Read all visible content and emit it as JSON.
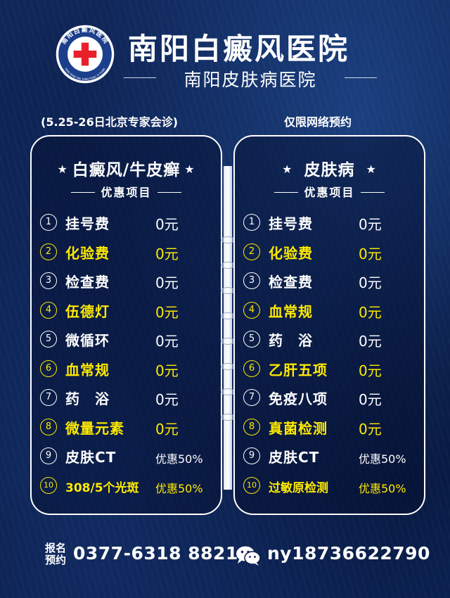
{
  "header": {
    "logo_ring_text": "南阳白癜风医院",
    "logo_pinyin": "NAN YANG BAI DIAN FENG YI YUAN",
    "title": "南阳白癜风医院",
    "subtitle": "南阳皮肤病医院",
    "note_left": "(5.25-26日北京专家会诊)",
    "note_right": "仅限网络预约"
  },
  "left_panel": {
    "title": "白癜风/牛皮癣",
    "subtitle": "优惠项目",
    "items": [
      {
        "num": "1",
        "name": "挂号费",
        "price": "0元",
        "color": "white"
      },
      {
        "num": "2",
        "name": "化验费",
        "price": "0元",
        "color": "yellow"
      },
      {
        "num": "3",
        "name": "检查费",
        "price": "0元",
        "color": "white"
      },
      {
        "num": "4",
        "name": "伍德灯",
        "price": "0元",
        "color": "yellow"
      },
      {
        "num": "5",
        "name": "微循环",
        "price": "0元",
        "color": "white"
      },
      {
        "num": "6",
        "name": "血常规",
        "price": "0元",
        "color": "yellow"
      },
      {
        "num": "7",
        "name": "药　浴",
        "price": "0元",
        "color": "white"
      },
      {
        "num": "8",
        "name": "微量元素",
        "price": "0元",
        "color": "yellow"
      },
      {
        "num": "9",
        "name": "皮肤CT",
        "price": "优惠50%",
        "color": "white"
      },
      {
        "num": "10",
        "name": "308/5个光斑",
        "price": "优惠50%",
        "color": "yellow"
      }
    ]
  },
  "right_panel": {
    "title": "皮肤病",
    "subtitle": "优惠项目",
    "items": [
      {
        "num": "1",
        "name": "挂号费",
        "price": "0元",
        "color": "white"
      },
      {
        "num": "2",
        "name": "化验费",
        "price": "0元",
        "color": "yellow"
      },
      {
        "num": "3",
        "name": "检查费",
        "price": "0元",
        "color": "white"
      },
      {
        "num": "4",
        "name": "血常规",
        "price": "0元",
        "color": "yellow"
      },
      {
        "num": "5",
        "name": "药　浴",
        "price": "0元",
        "color": "white"
      },
      {
        "num": "6",
        "name": "乙肝五项",
        "price": "0元",
        "color": "yellow"
      },
      {
        "num": "7",
        "name": "免疫八项",
        "price": "0元",
        "color": "white"
      },
      {
        "num": "8",
        "name": "真菌检测",
        "price": "0元",
        "color": "yellow"
      },
      {
        "num": "9",
        "name": "皮肤CT",
        "price": "优惠50%",
        "color": "white"
      },
      {
        "num": "10",
        "name": "过敏原检测",
        "price": "优惠50%",
        "color": "yellow"
      }
    ]
  },
  "footer": {
    "label_top": "报名",
    "label_bottom": "预约",
    "phone": "0377-6318 8821",
    "wechat_id": "ny18736622790"
  },
  "colors": {
    "highlight": "#ffea00",
    "text": "#ffffff",
    "logo_red": "#e8202a",
    "logo_blue": "#1c3f8c"
  }
}
